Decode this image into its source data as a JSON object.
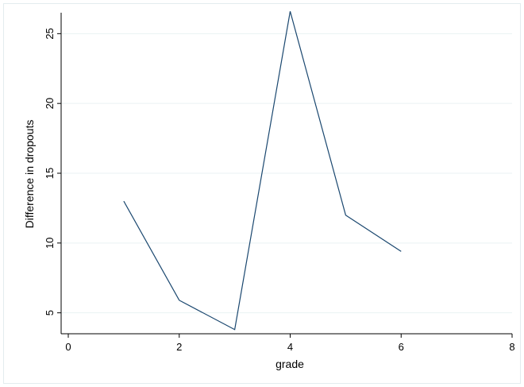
{
  "chart_data": {
    "type": "line",
    "title": "",
    "xlabel": "grade",
    "ylabel": "Difference in dropouts",
    "xlim": [
      0,
      8
    ],
    "ylim": [
      3.5,
      26.5
    ],
    "x_ticks": [
      0,
      2,
      4,
      6,
      8
    ],
    "y_ticks": [
      5,
      10,
      15,
      20,
      25
    ],
    "grid": true,
    "legend": "none",
    "series": [
      {
        "x": [
          1,
          2,
          3,
          4,
          5,
          6
        ],
        "y": [
          13.0,
          5.9,
          3.8,
          26.6,
          12.0,
          9.4
        ],
        "color": "#1a476f"
      }
    ],
    "colors": {
      "line": "#1a476f",
      "grid": "#eaf2f3",
      "axis": "#000000",
      "frame": "#e3ecef"
    }
  }
}
